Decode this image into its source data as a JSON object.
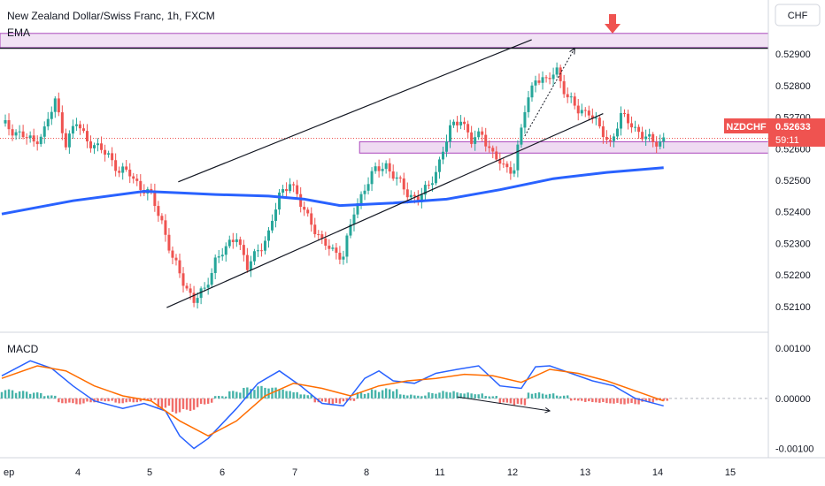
{
  "header": {
    "symbol_title": "New Zealand Dollar/Swiss Franc, 1h, FXCM",
    "ema_label": "EMA",
    "currency_label": "CHF"
  },
  "colors": {
    "up": "#26a69a",
    "down": "#ef5350",
    "ema": "#2962ff",
    "macd_line": "#2962ff",
    "signal_line": "#ff6d00",
    "zone_fill": "#e1bee7",
    "zone_border": "#ab47bc",
    "price_badge": "#ef5350"
  },
  "price_badge": {
    "symbol": "NZDCHF",
    "price": "0.52633",
    "countdown": "59:11"
  },
  "macd_label": "MACD",
  "chart_data": [
    {
      "type": "candlestick",
      "title": "New Zealand Dollar/Swiss Franc, 1h, FXCM",
      "ylim": [
        0.5203,
        0.5297
      ],
      "y_ticks": [
        "0.52900",
        "0.52800",
        "0.52700",
        "0.52600",
        "0.52500",
        "0.52400",
        "0.52300",
        "0.52200",
        "0.52100"
      ],
      "x_ticks": [
        "ep",
        "4",
        "5",
        "6",
        "7",
        "8",
        "11",
        "12",
        "13",
        "14",
        "15"
      ],
      "last_price": 0.52633,
      "close_path": [
        [
          0,
          0.5268
        ],
        [
          3,
          0.5266
        ],
        [
          6,
          0.5264
        ],
        [
          9,
          0.5262
        ],
        [
          12,
          0.5266
        ],
        [
          15,
          0.5275
        ],
        [
          18,
          0.5262
        ],
        [
          21,
          0.5268
        ],
        [
          24,
          0.5263
        ],
        [
          27,
          0.526
        ],
        [
          30,
          0.5258
        ],
        [
          33,
          0.5253
        ],
        [
          36,
          0.5252
        ],
        [
          39,
          0.5248
        ],
        [
          42,
          0.5245
        ],
        [
          45,
          0.5237
        ],
        [
          48,
          0.5225
        ],
        [
          51,
          0.5218
        ],
        [
          54,
          0.5212
        ],
        [
          57,
          0.5215
        ],
        [
          60,
          0.5225
        ],
        [
          63,
          0.5228
        ],
        [
          66,
          0.5233
        ],
        [
          69,
          0.5222
        ],
        [
          72,
          0.5228
        ],
        [
          75,
          0.5233
        ],
        [
          78,
          0.5245
        ],
        [
          81,
          0.525
        ],
        [
          84,
          0.5242
        ],
        [
          87,
          0.5237
        ],
        [
          90,
          0.523
        ],
        [
          93,
          0.5228
        ],
        [
          96,
          0.5226
        ],
        [
          99,
          0.524
        ],
        [
          102,
          0.5248
        ],
        [
          105,
          0.5253
        ],
        [
          108,
          0.5255
        ],
        [
          111,
          0.525
        ],
        [
          114,
          0.5246
        ],
        [
          117,
          0.5244
        ],
        [
          120,
          0.5248
        ],
        [
          123,
          0.5256
        ],
        [
          126,
          0.5266
        ],
        [
          129,
          0.527
        ],
        [
          132,
          0.5262
        ],
        [
          135,
          0.5265
        ],
        [
          138,
          0.5258
        ],
        [
          141,
          0.5254
        ],
        [
          144,
          0.5254
        ],
        [
          147,
          0.5272
        ],
        [
          150,
          0.5283
        ],
        [
          153,
          0.5281
        ],
        [
          156,
          0.5285
        ],
        [
          159,
          0.5276
        ],
        [
          162,
          0.5272
        ],
        [
          165,
          0.5272
        ],
        [
          168,
          0.5266
        ],
        [
          171,
          0.5262
        ],
        [
          174,
          0.527
        ],
        [
          177,
          0.5268
        ],
        [
          180,
          0.5264
        ],
        [
          183,
          0.5262
        ],
        [
          186,
          0.5263
        ]
      ],
      "series": [
        {
          "name": "EMA",
          "x": [
            0,
            20,
            40,
            50,
            60,
            75,
            85,
            95,
            110,
            125,
            140,
            155,
            170,
            186
          ],
          "values": [
            0.52393,
            0.52435,
            0.52465,
            0.5246,
            0.52455,
            0.5245,
            0.5244,
            0.5242,
            0.52428,
            0.5244,
            0.5247,
            0.52505,
            0.52525,
            0.5254
          ]
        }
      ],
      "zones": [
        {
          "y0": 0.52622,
          "y1": 0.52586,
          "x0": 0.468,
          "x1": 1.0
        },
        {
          "y0": 0.52965,
          "y1": 0.5292,
          "x0": 0.0,
          "x1": 1.0
        }
      ],
      "resistance_line": 0.52918,
      "channel": {
        "upper": [
          [
            0.232,
            0.52495
          ],
          [
            0.692,
            0.52945
          ]
        ],
        "lower": [
          [
            0.217,
            0.52097
          ],
          [
            0.785,
            0.52711
          ]
        ]
      },
      "projection_arrow": {
        "from": [
          0.683,
          0.5264
        ],
        "to": [
          0.748,
          0.52918
        ]
      }
    },
    {
      "type": "line",
      "title": "MACD",
      "ylim": [
        -0.00115,
        0.00125
      ],
      "y_ticks": [
        "0.00100",
        "0.00000",
        "-0.00100"
      ],
      "series": [
        {
          "name": "MACD",
          "x": [
            0,
            8,
            14,
            20,
            26,
            34,
            40,
            46,
            50,
            54,
            58,
            62,
            66,
            72,
            78,
            84,
            90,
            96,
            102,
            106,
            110,
            116,
            122,
            128,
            134,
            140,
            146,
            150,
            154,
            160,
            166,
            172,
            178,
            186
          ],
          "values": [
            0.00045,
            0.00075,
            0.0006,
            0.00025,
            -5e-05,
            -0.0002,
            -0.0001,
            -0.00025,
            -0.00075,
            -0.001,
            -0.0008,
            -0.0005,
            -0.0002,
            0.0003,
            0.00055,
            0.00025,
            -0.0001,
            -0.00015,
            0.0004,
            0.00055,
            0.00035,
            0.0003,
            0.0005,
            0.00058,
            0.00065,
            0.00025,
            0.0002,
            0.00063,
            0.00065,
            0.0005,
            0.00035,
            0.00025,
            0.0,
            -0.00015
          ]
        },
        {
          "name": "Signal",
          "x": [
            0,
            10,
            18,
            26,
            34,
            42,
            50,
            58,
            66,
            74,
            82,
            90,
            98,
            106,
            114,
            122,
            130,
            138,
            146,
            154,
            162,
            170,
            178,
            186
          ],
          "values": [
            0.0004,
            0.00065,
            0.00055,
            0.00025,
            5e-05,
            -5e-05,
            -0.00045,
            -0.00075,
            -0.00045,
            5e-05,
            0.0003,
            0.0002,
            5e-05,
            0.00025,
            0.00035,
            0.0004,
            0.00048,
            0.00045,
            0.00032,
            0.00058,
            0.0005,
            0.00035,
            0.00015,
            -5e-05
          ]
        }
      ],
      "histogram_x": [
        0,
        4,
        8,
        12,
        16,
        20,
        24,
        28,
        32,
        36,
        40,
        44,
        48,
        52,
        56,
        60,
        64,
        68,
        72,
        76,
        80,
        84,
        88,
        92,
        96,
        100,
        104,
        108,
        112,
        116,
        120,
        124,
        128,
        132,
        136,
        140,
        144,
        148,
        152,
        156,
        160,
        164,
        168,
        172,
        176,
        180,
        184
      ],
      "histogram_values": [
        0.00018,
        0.00015,
        0.00012,
        6e-05,
        -0.0001,
        -0.00012,
        -8e-05,
        -6e-05,
        -0.0001,
        -8e-05,
        -4e-05,
        -0.0002,
        -0.0003,
        -0.00025,
        -0.00012,
        5e-05,
        0.00015,
        0.00022,
        0.00025,
        0.00022,
        0.00015,
        8e-05,
        -8e-05,
        -0.00012,
        -6e-05,
        0.00012,
        0.00018,
        0.0002,
        8e-05,
        6e-05,
        0.00012,
        0.00015,
        0.00012,
        0.0001,
        5e-05,
        -0.0001,
        -0.00014,
        0.00012,
        0.0001,
        6e-05,
        -5e-05,
        -8e-05,
        -0.0001,
        -0.00012,
        -0.00012,
        -8e-05,
        -5e-05
      ]
    }
  ]
}
